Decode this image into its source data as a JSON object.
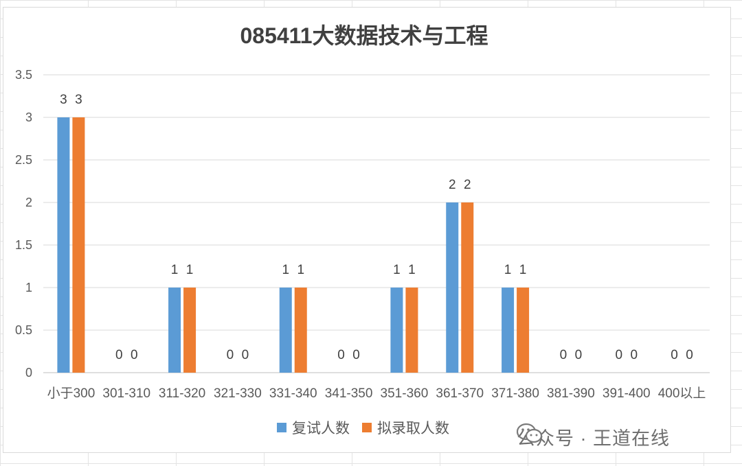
{
  "chart_data": {
    "type": "bar",
    "title": "085411大数据技术与工程",
    "categories": [
      "小于300",
      "301-310",
      "311-320",
      "321-330",
      "331-340",
      "341-350",
      "351-360",
      "361-370",
      "371-380",
      "381-390",
      "391-400",
      "400以上"
    ],
    "series": [
      {
        "name": "复试人数",
        "color": "#5b9bd5",
        "values": [
          3,
          0,
          1,
          0,
          1,
          0,
          1,
          2,
          1,
          0,
          0,
          0
        ]
      },
      {
        "name": "拟录取人数",
        "color": "#ed7d31",
        "values": [
          3,
          0,
          1,
          0,
          1,
          0,
          1,
          2,
          1,
          0,
          0,
          0
        ]
      }
    ],
    "ylim": [
      0,
      3.5
    ],
    "yticks": [
      "0",
      "0.5",
      "1",
      "1.5",
      "2",
      "2.5",
      "3",
      "3.5"
    ],
    "grid": true,
    "legend_position": "bottom",
    "data_labels": true
  },
  "watermark": {
    "icon": "wechat-icon",
    "text": "公众号 · 王道在线"
  }
}
